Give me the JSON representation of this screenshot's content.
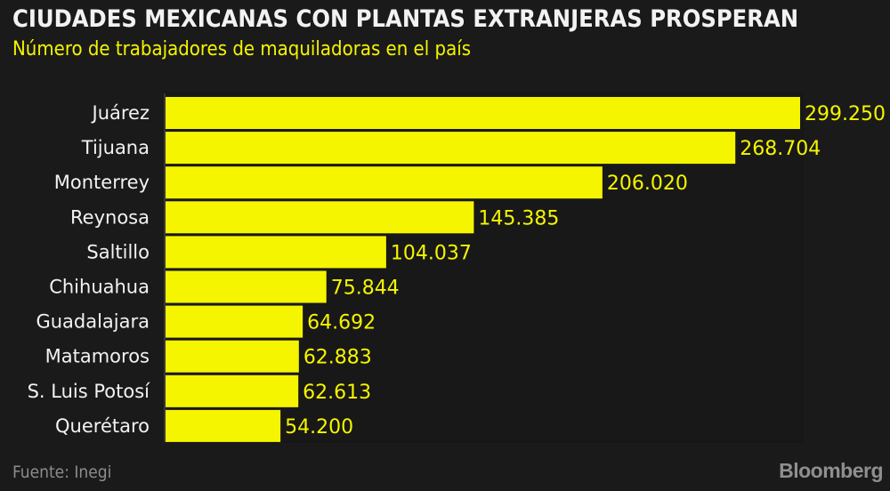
{
  "title": "CIUDADES MEXICANAS CON PLANTAS EXTRANJERAS PROSPERAN",
  "subtitle": "Número de trabajadores de maquiladoras en el país",
  "source": "Fuente: Inegi",
  "logo": "Bloomberg",
  "colors": {
    "background": "#1a1a1a",
    "bar": "#f5f500",
    "label": "#f2f2f2",
    "value": "#f5f500"
  },
  "chart_data": {
    "type": "bar",
    "orientation": "horizontal",
    "title": "CIUDADES MEXICANAS CON PLANTAS EXTRANJERAS PROSPERAN",
    "subtitle": "Número de trabajadores de maquiladoras en el país",
    "categories": [
      "Juárez",
      "Tijuana",
      "Monterrey",
      "Reynosa",
      "Saltillo",
      "Chihuahua",
      "Guadalajara",
      "Matamoros",
      "S. Luis Potosí",
      "Querétaro"
    ],
    "values": [
      299250,
      268704,
      206020,
      145385,
      104037,
      75844,
      64692,
      62883,
      62613,
      54200
    ],
    "value_labels": [
      "299.250",
      "268.704",
      "206.020",
      "145.385",
      "104.037",
      "75.844",
      "64.692",
      "62.883",
      "62.613",
      "54.200"
    ],
    "xlim": [
      0,
      300000
    ],
    "grid": false
  }
}
